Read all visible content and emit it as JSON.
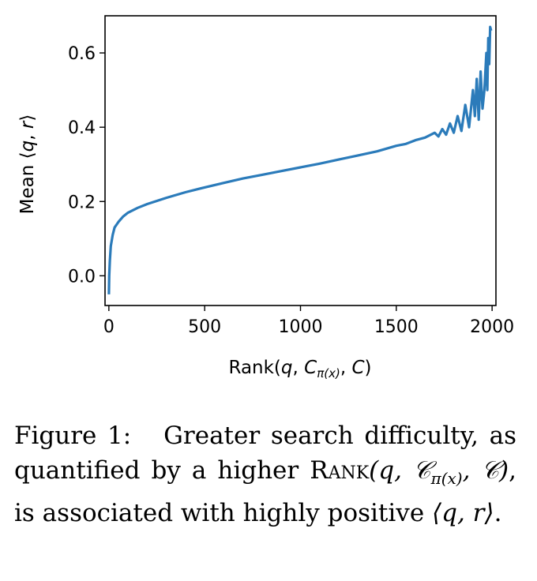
{
  "chart_data": {
    "type": "line",
    "title": "",
    "xlabel_parts": {
      "prefix": "Rank(",
      "q": "q",
      "sep1": ", ",
      "C": "C",
      "sub": "π(x)",
      "sep2": ", ",
      "C2": "C",
      "suffix": ")"
    },
    "ylabel_parts": {
      "prefix": "Mean ⟨",
      "q": "q",
      "comma": ", ",
      "r": "r",
      "suffix": "⟩"
    },
    "xlim": [
      -20,
      2020
    ],
    "ylim": [
      -0.08,
      0.7
    ],
    "xticks": [
      0,
      500,
      1000,
      1500,
      2000
    ],
    "xtick_labels": [
      "0",
      "500",
      "1000",
      "1500",
      "2000"
    ],
    "yticks": [
      0.0,
      0.2,
      0.4,
      0.6
    ],
    "ytick_labels": [
      "0.0",
      "0.2",
      "0.4",
      "0.6"
    ],
    "grid": false,
    "series": [
      {
        "name": "Mean <q,r>",
        "color": "#2b7bba",
        "x": [
          0,
          2,
          5,
          10,
          20,
          30,
          50,
          75,
          100,
          150,
          200,
          300,
          400,
          500,
          600,
          700,
          800,
          900,
          1000,
          1100,
          1200,
          1300,
          1400,
          1500,
          1550,
          1600,
          1650,
          1700,
          1720,
          1740,
          1760,
          1780,
          1800,
          1820,
          1840,
          1860,
          1880,
          1900,
          1910,
          1920,
          1930,
          1940,
          1950,
          1960,
          1970,
          1975,
          1980,
          1985,
          1990,
          1995
        ],
        "y": [
          -0.05,
          0.0,
          0.04,
          0.08,
          0.11,
          0.13,
          0.145,
          0.16,
          0.17,
          0.183,
          0.193,
          0.21,
          0.225,
          0.238,
          0.25,
          0.262,
          0.272,
          0.282,
          0.292,
          0.302,
          0.313,
          0.324,
          0.335,
          0.35,
          0.355,
          0.365,
          0.372,
          0.385,
          0.375,
          0.395,
          0.38,
          0.41,
          0.385,
          0.43,
          0.39,
          0.46,
          0.4,
          0.5,
          0.43,
          0.53,
          0.42,
          0.55,
          0.45,
          0.5,
          0.6,
          0.5,
          0.64,
          0.57,
          0.67,
          0.66
        ]
      }
    ]
  },
  "caption": {
    "label": "Figure 1:",
    "text1": "Greater search difficulty, as quantified by a higher",
    "rank": "Rank",
    "math_arg": "(q, 𝒞",
    "math_sub": "π(x)",
    "math_arg2": ", 𝒞)",
    "text2": ", is associated with highly positive",
    "qr": "⟨q, r⟩",
    "end": "."
  }
}
